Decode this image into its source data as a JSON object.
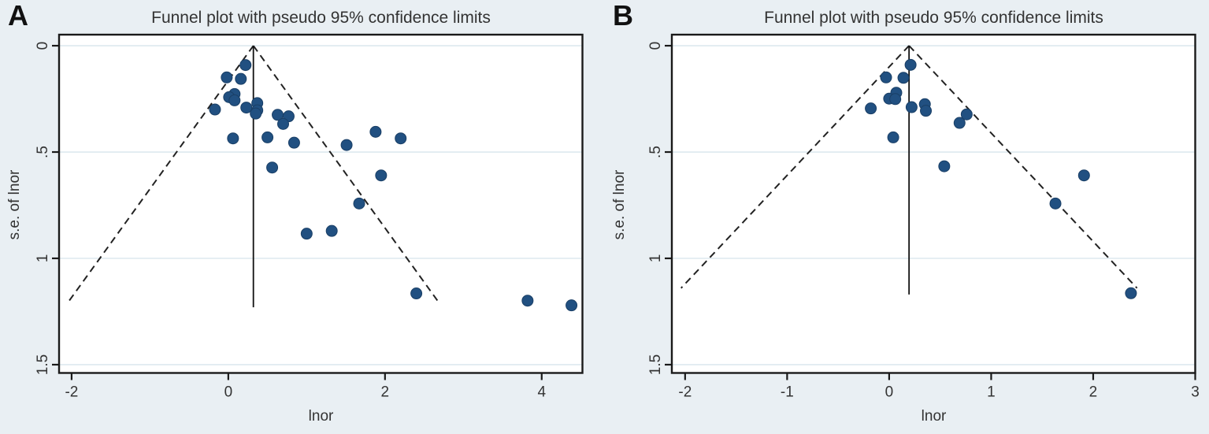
{
  "figure": {
    "colors": {
      "background": "#e9eff3",
      "plot_background": "#ffffff",
      "gridline": "#dde9ef",
      "frame": "#1a1a1a",
      "dashed_limit_line": "#222222",
      "center_line": "#111111",
      "marker_fill": "#215081",
      "marker_stroke": "#1a3f66",
      "text": "#333333"
    },
    "panels": [
      {
        "label": "A"
      },
      {
        "label": "B"
      }
    ]
  },
  "chart_data": [
    {
      "type": "scatter",
      "panel": "A",
      "title": "Funnel plot with pseudo 95% confidence limits",
      "xlabel": "lnor",
      "ylabel": "s.e. of lnor",
      "x_ticks": [
        -2,
        0,
        2,
        4
      ],
      "x_tick_labels": [
        "-2",
        "0",
        "2",
        "4"
      ],
      "y_ticks": [
        0,
        0.5,
        1,
        1.5
      ],
      "y_tick_labels": [
        "0",
        ".5",
        "1",
        "1.5"
      ],
      "x_range": [
        -2.16,
        4.52
      ],
      "y_range": [
        -0.052,
        1.539
      ],
      "y_axis_reversed": true,
      "grid": "horizontal",
      "legend": "none",
      "center_line_x": 0.32,
      "center_line_se_end": 1.23,
      "funnel": {
        "apex_x": 0.32,
        "slope": 1.96,
        "se_end": 1.21
      },
      "points": [
        [
          0.22,
          0.091
        ],
        [
          -0.02,
          0.149
        ],
        [
          0.16,
          0.156
        ],
        [
          0.08,
          0.227
        ],
        [
          0.01,
          0.242
        ],
        [
          0.08,
          0.257
        ],
        [
          -0.17,
          0.3
        ],
        [
          0.23,
          0.291
        ],
        [
          0.37,
          0.27
        ],
        [
          0.37,
          0.304
        ],
        [
          0.35,
          0.319
        ],
        [
          0.63,
          0.325
        ],
        [
          0.77,
          0.332
        ],
        [
          0.7,
          0.368
        ],
        [
          0.06,
          0.436
        ],
        [
          0.5,
          0.431
        ],
        [
          0.84,
          0.456
        ],
        [
          1.51,
          0.467
        ],
        [
          1.88,
          0.405
        ],
        [
          2.2,
          0.436
        ],
        [
          0.56,
          0.573
        ],
        [
          1.95,
          0.61
        ],
        [
          1.67,
          0.742
        ],
        [
          1.0,
          0.884
        ],
        [
          1.32,
          0.871
        ],
        [
          2.4,
          1.165
        ],
        [
          3.82,
          1.199
        ],
        [
          4.38,
          1.221
        ]
      ]
    },
    {
      "type": "scatter",
      "panel": "B",
      "title": "Funnel plot with pseudo 95% confidence limits",
      "xlabel": "lnor",
      "ylabel": "s.e. of lnor",
      "x_ticks": [
        -2,
        -1,
        0,
        1,
        2,
        3
      ],
      "x_tick_labels": [
        "-2",
        "-1",
        "0",
        "1",
        "2",
        "3"
      ],
      "y_ticks": [
        0,
        0.5,
        1,
        1.5
      ],
      "y_tick_labels": [
        "0",
        ".5",
        "1",
        "1.5"
      ],
      "x_range": [
        -2.13,
        3.0
      ],
      "y_range": [
        -0.052,
        1.539
      ],
      "y_axis_reversed": true,
      "grid": "horizontal",
      "legend": "none",
      "center_line_x": 0.195,
      "center_line_se_end": 1.17,
      "funnel": {
        "apex_x": 0.195,
        "slope": 1.96,
        "se_end": 1.14
      },
      "points": [
        [
          0.21,
          0.09
        ],
        [
          -0.03,
          0.149
        ],
        [
          0.14,
          0.151
        ],
        [
          0.07,
          0.221
        ],
        [
          0.0,
          0.249
        ],
        [
          0.06,
          0.251
        ],
        [
          -0.18,
          0.295
        ],
        [
          0.22,
          0.289
        ],
        [
          0.35,
          0.275
        ],
        [
          0.36,
          0.306
        ],
        [
          0.76,
          0.323
        ],
        [
          0.69,
          0.363
        ],
        [
          0.04,
          0.431
        ],
        [
          0.54,
          0.567
        ],
        [
          1.91,
          0.61
        ],
        [
          1.63,
          0.742
        ],
        [
          2.37,
          1.164
        ]
      ]
    }
  ]
}
